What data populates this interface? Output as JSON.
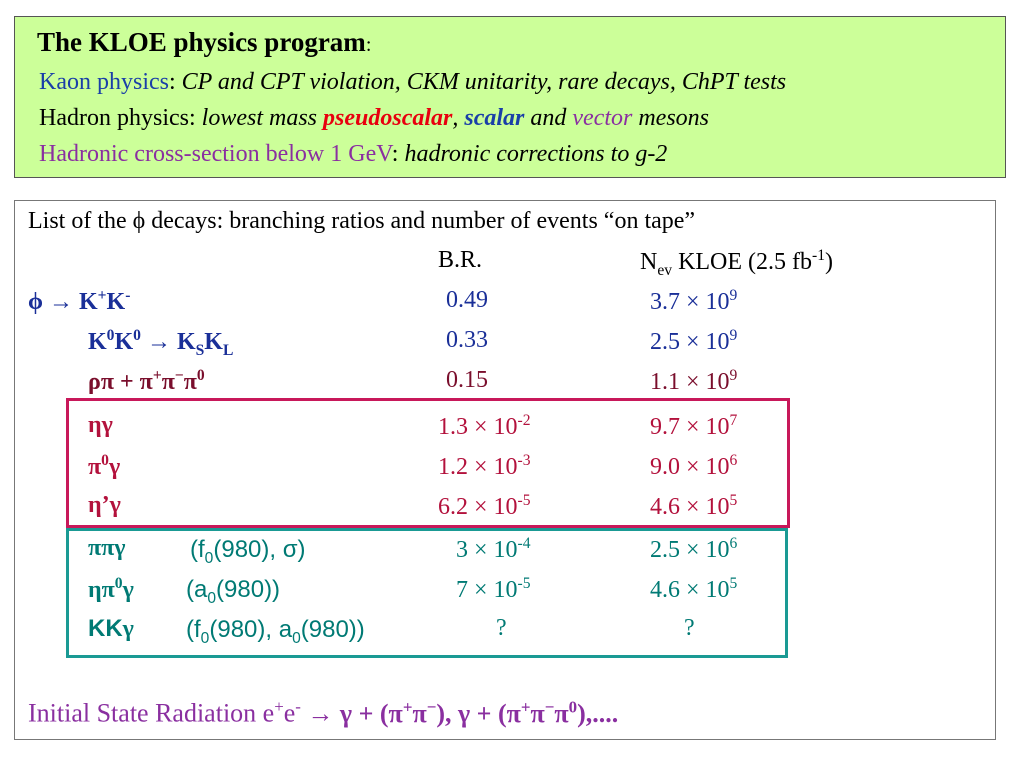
{
  "header": {
    "title": "The KLOE physics program",
    "title_colon": ":",
    "line1_label": "Kaon physics",
    "line1_colon": ":",
    "line1_text": "CP and CPT violation, CKM unitarity, rare decays, ChPT tests",
    "line2_label": "Hadron physics:",
    "line2_pre": "lowest mass",
    "line2_pseudoscalar": "pseudoscalar",
    "line2_comma": ",",
    "line2_scalar": "scalar",
    "line2_and": "and",
    "line2_vector": "vector",
    "line2_mesons": "mesons",
    "line3_label": "Hadronic cross-section below 1 GeV",
    "line3_colon": ":",
    "line3_text": "hadronic corrections to g-2"
  },
  "table": {
    "intro": "List of the ϕ decays: branching ratios and number of events “on tape”",
    "col_br": "B.R.",
    "col_nev": "KLOE (2.5 fb",
    "rows": [
      {
        "br": "0.49",
        "nev_mant": "3.7 × 10",
        "nev_exp": "9"
      },
      {
        "br": "0.33",
        "nev_mant": "2.5 × 10",
        "nev_exp": "9"
      },
      {
        "br": "0.15",
        "nev_mant": "1.1 × 10",
        "nev_exp": "9"
      },
      {
        "br_mant": "1.3 × 10",
        "br_exp": "-2",
        "nev_mant": "9.7 × 10",
        "nev_exp": "7"
      },
      {
        "br_mant": "1.2 × 10",
        "br_exp": "-3",
        "nev_mant": "9.0 × 10",
        "nev_exp": "6"
      },
      {
        "br_mant": "6.2 × 10",
        "br_exp": "-5",
        "nev_mant": "4.6 × 10",
        "nev_exp": "5"
      },
      {
        "br_mant": "3 × 10",
        "br_exp": "-4",
        "nev_mant": "2.5 × 10",
        "nev_exp": "6"
      },
      {
        "br_mant": "7 × 10",
        "br_exp": "-5",
        "nev_mant": "4.6 × 10",
        "nev_exp": "5"
      },
      {
        "br": "?",
        "nev": "?"
      }
    ]
  },
  "footer": {
    "isr_label": "Initial State Radiation e"
  },
  "colors": {
    "header_bg": "#ccff99",
    "blue": "#1a3fa8",
    "purple": "#8a2fa0",
    "red": "#e8000e",
    "teal": "#1a9a94",
    "crimson": "#c8185a"
  }
}
